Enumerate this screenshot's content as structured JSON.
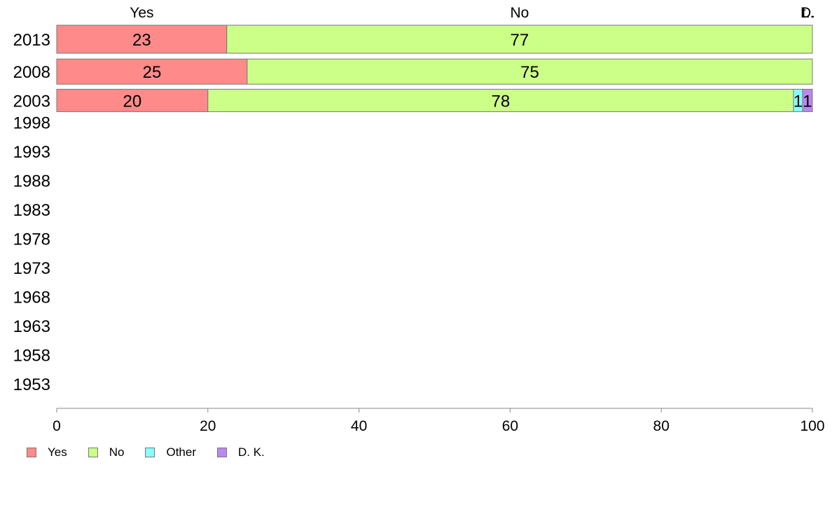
{
  "chart_data": {
    "type": "bar",
    "orientation": "horizontal",
    "stacked": true,
    "categories": [
      "2013",
      "2008",
      "2003",
      "1998",
      "1993",
      "1988",
      "1983",
      "1978",
      "1973",
      "1968",
      "1963",
      "1958",
      "1953"
    ],
    "series": [
      {
        "name": "Yes",
        "color": "#ff8a8a",
        "values": [
          22.5,
          25.2,
          20.0,
          null,
          null,
          null,
          null,
          null,
          null,
          null,
          null,
          null,
          null
        ],
        "labels": [
          "23",
          "25",
          "20",
          "",
          "",
          "",
          "",
          "",
          "",
          "",
          "",
          "",
          ""
        ]
      },
      {
        "name": "No",
        "color": "#ccff88",
        "values": [
          77.5,
          74.8,
          77.5,
          null,
          null,
          null,
          null,
          null,
          null,
          null,
          null,
          null,
          null
        ],
        "labels": [
          "77",
          "75",
          "78",
          "",
          "",
          "",
          "",
          "",
          "",
          "",
          "",
          "",
          ""
        ]
      },
      {
        "name": "Other",
        "color": "#88ffff",
        "values": [
          0,
          0,
          1.2,
          null,
          null,
          null,
          null,
          null,
          null,
          null,
          null,
          null,
          null
        ],
        "labels": [
          "",
          "",
          "1",
          "",
          "",
          "",
          "",
          "",
          "",
          "",
          "",
          "",
          ""
        ]
      },
      {
        "name": "D. K.",
        "color": "#bb88ee",
        "values": [
          0,
          0,
          1.3,
          null,
          null,
          null,
          null,
          null,
          null,
          null,
          null,
          null,
          null
        ],
        "labels": [
          "",
          "",
          "1",
          "",
          "",
          "",
          "",
          "",
          "",
          "",
          "",
          "",
          ""
        ]
      }
    ],
    "top_labels": [
      "Yes",
      "No",
      "D.",
      "t.."
    ],
    "xlim": [
      0,
      100
    ],
    "xticks": [
      "0",
      "20",
      "40",
      "60",
      "80",
      "100"
    ],
    "grid": false,
    "legend_position": "bottom-left"
  },
  "legend": [
    {
      "label": "Yes",
      "color": "#ff8a8a"
    },
    {
      "label": "No",
      "color": "#ccff88"
    },
    {
      "label": "Other",
      "color": "#88ffff"
    },
    {
      "label": "D. K.",
      "color": "#bb88ee"
    }
  ]
}
